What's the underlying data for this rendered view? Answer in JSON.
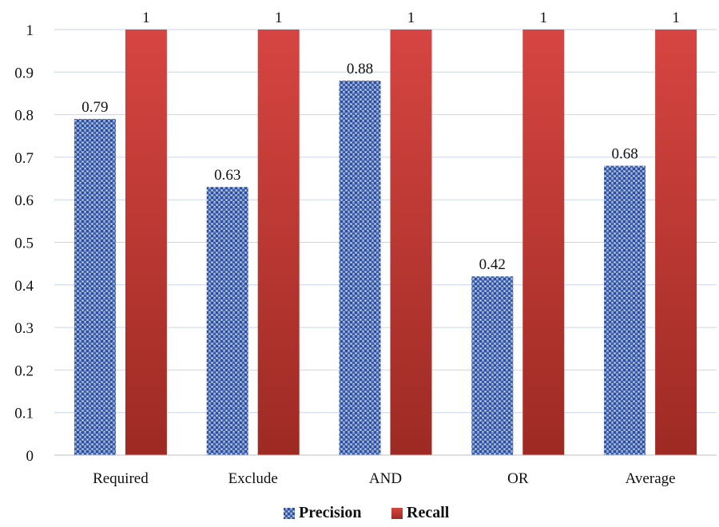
{
  "chart_data": {
    "type": "bar",
    "categories": [
      "Required",
      "Exclude",
      "AND",
      "OR",
      "Average"
    ],
    "series": [
      {
        "name": "Precision",
        "values": [
          0.79,
          0.63,
          0.88,
          0.42,
          0.68
        ],
        "color": "#4a6db5"
      },
      {
        "name": "Recall",
        "values": [
          1,
          1,
          1,
          1,
          1
        ],
        "color": "#c0392b"
      }
    ],
    "data_labels": [
      [
        "0.79",
        "0.63",
        "0.88",
        "0.42",
        "0.68"
      ],
      [
        "1",
        "1",
        "1",
        "1",
        "1"
      ]
    ],
    "yticks": [
      "0",
      "0.1",
      "0.2",
      "0.3",
      "0.4",
      "0.5",
      "0.6",
      "0.7",
      "0.8",
      "0.9",
      "1"
    ],
    "ylim": [
      0,
      1
    ],
    "grid": true,
    "legend_position": "bottom-center"
  }
}
